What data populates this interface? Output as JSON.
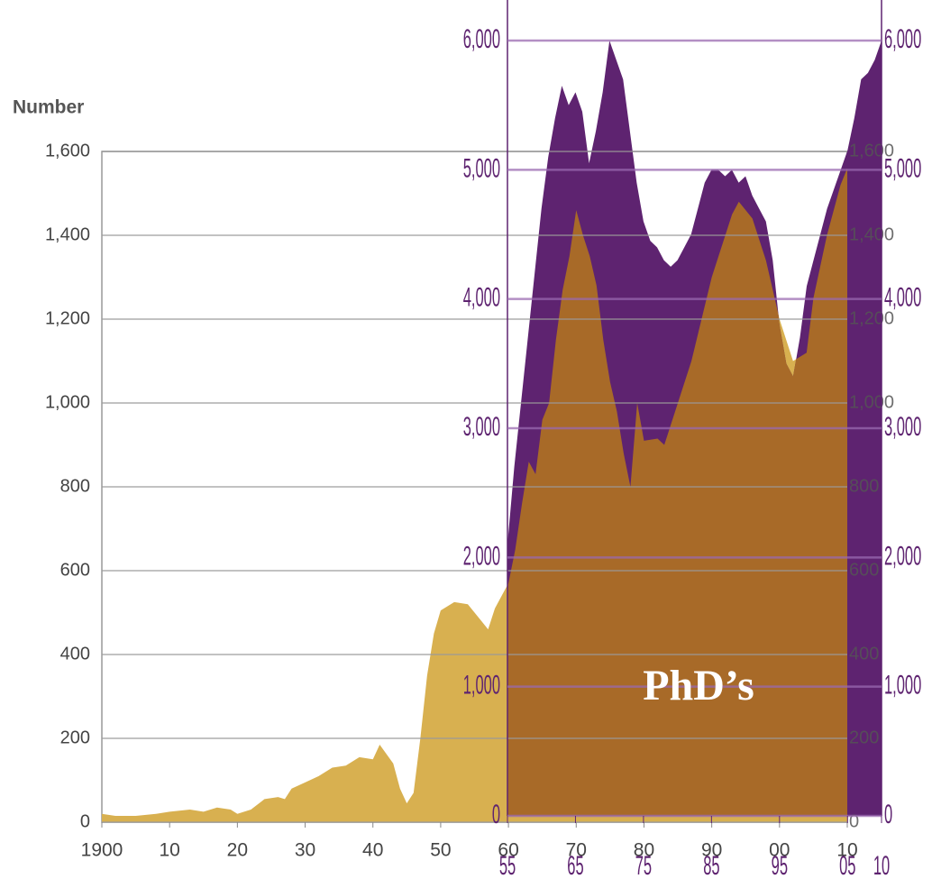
{
  "chart_data": [
    {
      "type": "area",
      "y_label": "Number",
      "color": "#d8b050",
      "overlap_color": "#a86a28",
      "x": [
        1900,
        1902,
        1905,
        1908,
        1910,
        1913,
        1915,
        1917,
        1919,
        1920,
        1922,
        1924,
        1926,
        1927,
        1928,
        1930,
        1932,
        1934,
        1936,
        1938,
        1940,
        1941,
        1943,
        1944,
        1945,
        1946,
        1947,
        1948,
        1949,
        1950,
        1952,
        1954,
        1956,
        1957,
        1958,
        1959,
        1960,
        1961,
        1962,
        1963,
        1964,
        1965,
        1966,
        1967,
        1968,
        1969,
        1970,
        1971,
        1972,
        1973,
        1974,
        1975,
        1976,
        1977,
        1978,
        1979,
        1980,
        1982,
        1983,
        1985,
        1987,
        1990,
        1993,
        1994,
        1996,
        1998,
        2000,
        2002,
        2003,
        2004,
        2005,
        2007,
        2009,
        2010
      ],
      "values": [
        20,
        15,
        15,
        20,
        25,
        30,
        25,
        35,
        30,
        20,
        30,
        55,
        60,
        55,
        80,
        95,
        110,
        130,
        135,
        155,
        150,
        185,
        140,
        80,
        45,
        70,
        200,
        350,
        450,
        505,
        525,
        520,
        480,
        460,
        510,
        540,
        570,
        650,
        760,
        860,
        830,
        960,
        1000,
        1150,
        1270,
        1350,
        1460,
        1400,
        1350,
        1280,
        1150,
        1050,
        980,
        880,
        800,
        1000,
        910,
        915,
        900,
        1000,
        1100,
        1300,
        1450,
        1480,
        1440,
        1340,
        1200,
        1100,
        1110,
        1120,
        1250,
        1400,
        1520,
        1560
      ],
      "xlim": [
        1900,
        2010
      ],
      "ylim": [
        0,
        1600
      ],
      "xticks": [
        {
          "value": 1900,
          "label": "1900"
        },
        {
          "value": 1910,
          "label": "10"
        },
        {
          "value": 1920,
          "label": "20"
        },
        {
          "value": 1930,
          "label": "30"
        },
        {
          "value": 1940,
          "label": "40"
        },
        {
          "value": 1950,
          "label": "50"
        },
        {
          "value": 1960,
          "label": "60"
        },
        {
          "value": 1970,
          "label": "70"
        },
        {
          "value": 1980,
          "label": "80"
        },
        {
          "value": 1990,
          "label": "90"
        },
        {
          "value": 2000,
          "label": "00"
        },
        {
          "value": 2010,
          "label": "10"
        }
      ],
      "yticks": [
        0,
        200,
        400,
        600,
        800,
        {
          "value": 1000,
          "label": "1,000"
        },
        {
          "value": 1200,
          "label": "1,200"
        },
        {
          "value": 1400,
          "label": "1,400"
        },
        {
          "value": 1600,
          "label": "1,600"
        }
      ],
      "grid": true
    },
    {
      "type": "area",
      "color": "#5e2370",
      "annotation": "PhD’s",
      "x": [
        1955,
        1956,
        1957,
        1958,
        1959,
        1960,
        1961,
        1962,
        1963,
        1964,
        1965,
        1966,
        1967,
        1968,
        1969,
        1970,
        1971,
        1972,
        1973,
        1974,
        1975,
        1976,
        1977,
        1978,
        1979,
        1980,
        1981,
        1982,
        1983,
        1984,
        1985,
        1986,
        1987,
        1988,
        1989,
        1990,
        1991,
        1992,
        1993,
        1994,
        1995,
        1996,
        1997,
        1998,
        1999,
        2000,
        2001,
        2002,
        2003,
        2004,
        2005,
        2006,
        2007,
        2008,
        2009,
        2010
      ],
      "values": [
        2100,
        2700,
        3200,
        3700,
        4200,
        4700,
        5100,
        5400,
        5650,
        5500,
        5600,
        5450,
        5050,
        5300,
        5600,
        6000,
        5850,
        5700,
        5300,
        4900,
        4600,
        4450,
        4400,
        4300,
        4250,
        4300,
        4400,
        4500,
        4700,
        4900,
        5000,
        5000,
        4950,
        5000,
        4900,
        4950,
        4800,
        4700,
        4600,
        4300,
        3800,
        3500,
        3400,
        3700,
        4100,
        4300,
        4500,
        4700,
        4850,
        5000,
        5150,
        5400,
        5700,
        5750,
        5850,
        6000
      ],
      "xlim": [
        1955,
        2010
      ],
      "ylim": [
        0,
        6000
      ],
      "xticks": [
        {
          "value": 1955,
          "label": "55"
        },
        {
          "value": 1965,
          "label": "65"
        },
        {
          "value": 1975,
          "label": "75"
        },
        {
          "value": 1985,
          "label": "85"
        },
        {
          "value": 1995,
          "label": "95"
        },
        {
          "value": 2005,
          "label": "05"
        },
        {
          "value": 2010,
          "label": "10"
        }
      ],
      "yticks": [
        0,
        {
          "value": 1000,
          "label": "1,000"
        },
        {
          "value": 2000,
          "label": "2,000"
        },
        {
          "value": 3000,
          "label": "3,000"
        },
        {
          "value": 4000,
          "label": "4,000"
        },
        {
          "value": 5000,
          "label": "5,000"
        },
        {
          "value": 6000,
          "label": "6,000"
        }
      ],
      "grid": true
    }
  ]
}
